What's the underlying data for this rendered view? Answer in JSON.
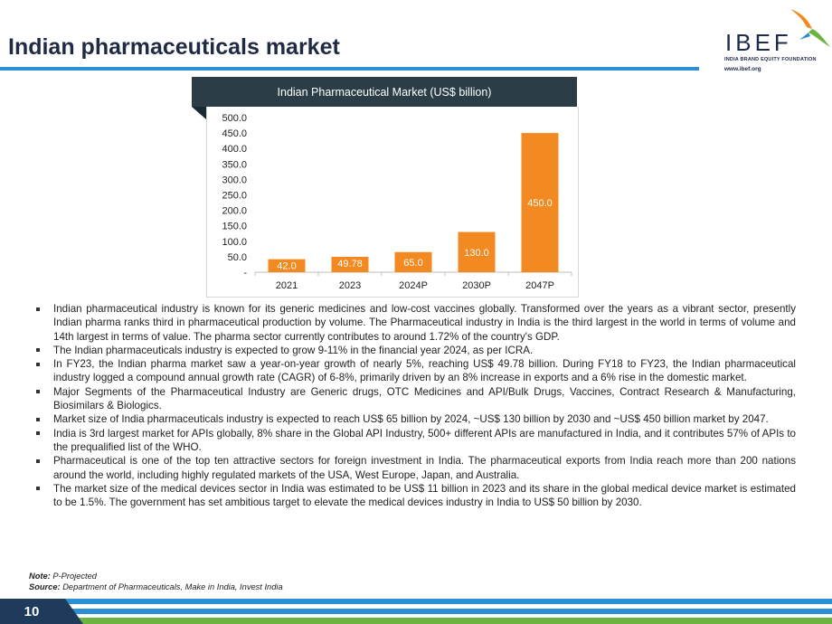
{
  "page": {
    "title": "Indian pharmaceuticals market",
    "page_number": "10"
  },
  "logo": {
    "name": "IBEF",
    "tagline": "INDIA BRAND EQUITY FOUNDATION",
    "url": "www.ibef.org"
  },
  "colors": {
    "title": "#1f2a44",
    "rule": "#2d8fd3",
    "header_bg": "#2b3e47",
    "bar": "#f28a21",
    "footer_dark": "#1f3b5c",
    "footer_green": "#6cb33f",
    "footer_blue": "#2d8fd3"
  },
  "chart_data": {
    "type": "bar",
    "title": "Indian Pharmaceutical Market (US$ billion)",
    "categories": [
      "2021",
      "2023",
      "2024P",
      "2030P",
      "2047P"
    ],
    "values": [
      42.0,
      49.78,
      65.0,
      130.0,
      450.0
    ],
    "value_labels": [
      "42.0",
      "49.78",
      "65.0",
      "130.0",
      "450.0"
    ],
    "ylim": [
      0,
      500
    ],
    "yticks": [
      "-",
      "50.0",
      "100.0",
      "150.0",
      "200.0",
      "250.0",
      "300.0",
      "350.0",
      "400.0",
      "450.0",
      "500.0"
    ],
    "grid": false,
    "legend": "none",
    "bar_color": "#f28a21"
  },
  "bullets": [
    "Indian pharmaceutical industry is known for its generic medicines and low-cost vaccines globally. Transformed over the years as a vibrant sector, presently Indian pharma ranks third in pharmaceutical production by volume. The Pharmaceutical industry in India is the third largest in the world in terms of volume and 14th largest in terms of value. The pharma sector currently contributes to around 1.72% of the country's GDP.",
    "The Indian pharmaceuticals industry is expected to grow 9-11% in the financial year 2024, as per ICRA.",
    "In FY23, the Indian pharma market saw a year-on-year growth of nearly 5%, reaching US$ 49.78 billion. During FY18 to FY23, the Indian pharmaceutical industry logged a compound annual growth rate (CAGR) of 6-8%, primarily driven by an 8% increase in exports and a 6% rise in the domestic market.",
    "Major Segments of the Pharmaceutical Industry are Generic drugs, OTC Medicines and API/Bulk Drugs, Vaccines, Contract Research & Manufacturing, Biosimilars & Biologics.",
    "Market size of India pharmaceuticals industry is expected to reach US$ 65 billion by 2024, ~US$ 130 billion by 2030 and ~US$ 450 billion market by 2047.",
    "India is 3rd largest market for APIs globally, 8% share in the Global API Industry, 500+ different APIs are manufactured in India, and it contributes 57% of APIs to the prequalified list of the WHO.",
    "Pharmaceutical is one of the top ten attractive sectors for foreign investment in India. The pharmaceutical exports from India reach more than 200 nations around the world, including highly regulated markets of the USA, West Europe, Japan, and Australia.",
    "The market size of the medical devices sector in India was estimated to be US$ 11 billion in 2023 and its share in the global medical device market is estimated to be 1.5%. The government has set ambitious target to elevate the medical devices industry in India to US$ 50 billion by 2030."
  ],
  "note": {
    "note_label": "Note:",
    "note_text": "P-Projected",
    "source_label": "Source:",
    "source_text": "Department of Pharmaceuticals, Make in India, Invest India"
  }
}
